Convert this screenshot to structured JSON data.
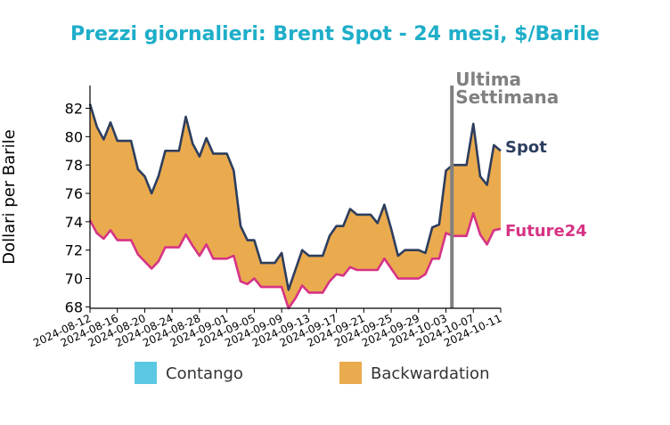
{
  "chart_data": {
    "type": "area",
    "title": "Prezzi giornalieri: Brent Spot - 24 mesi, $/Barile",
    "ylabel": "Dollari per Barile",
    "xlabel": "",
    "ylim": [
      67.9,
      83.6
    ],
    "yticks": [
      68,
      70,
      72,
      74,
      76,
      78,
      80,
      82
    ],
    "xticks": [
      "2024-08-12",
      "2024-08-16",
      "2024-08-20",
      "2024-08-24",
      "2024-08-28",
      "2024-09-01",
      "2024-09-05",
      "2024-09-09",
      "2024-09-13",
      "2024-09-17",
      "2024-09-21",
      "2024-09-25",
      "2024-09-29",
      "2024-10-03",
      "2024-10-07",
      "2024-10-11"
    ],
    "x": [
      "2024-08-12",
      "2024-08-13",
      "2024-08-14",
      "2024-08-15",
      "2024-08-16",
      "2024-08-17",
      "2024-08-18",
      "2024-08-19",
      "2024-08-20",
      "2024-08-21",
      "2024-08-22",
      "2024-08-23",
      "2024-08-24",
      "2024-08-25",
      "2024-08-26",
      "2024-08-27",
      "2024-08-28",
      "2024-08-29",
      "2024-08-30",
      "2024-08-31",
      "2024-09-01",
      "2024-09-02",
      "2024-09-03",
      "2024-09-04",
      "2024-09-05",
      "2024-09-06",
      "2024-09-07",
      "2024-09-08",
      "2024-09-09",
      "2024-09-10",
      "2024-09-11",
      "2024-09-12",
      "2024-09-13",
      "2024-09-14",
      "2024-09-15",
      "2024-09-16",
      "2024-09-17",
      "2024-09-18",
      "2024-09-19",
      "2024-09-20",
      "2024-09-21",
      "2024-09-22",
      "2024-09-23",
      "2024-09-24",
      "2024-09-25",
      "2024-09-26",
      "2024-09-27",
      "2024-09-28",
      "2024-09-29",
      "2024-09-30",
      "2024-10-01",
      "2024-10-02",
      "2024-10-03",
      "2024-10-04",
      "2024-10-05",
      "2024-10-06",
      "2024-10-07",
      "2024-10-08",
      "2024-10-09",
      "2024-10-10",
      "2024-10-11"
    ],
    "series": [
      {
        "name": "Spot",
        "color": "#2d3e5e",
        "values": [
          82.3,
          80.7,
          79.8,
          81.0,
          79.7,
          79.7,
          79.7,
          77.7,
          77.2,
          76.0,
          77.2,
          79.0,
          79.0,
          79.0,
          81.4,
          79.5,
          78.6,
          79.9,
          78.8,
          78.8,
          78.8,
          77.6,
          73.7,
          72.7,
          72.7,
          71.1,
          71.1,
          71.1,
          71.8,
          69.2,
          70.6,
          72.0,
          71.6,
          71.6,
          71.6,
          73.0,
          73.7,
          73.7,
          74.9,
          74.5,
          74.5,
          74.5,
          73.9,
          75.2,
          73.5,
          71.6,
          72.0,
          72.0,
          72.0,
          71.8,
          73.6,
          73.8,
          77.6,
          78.0,
          78.0,
          78.0,
          80.9,
          77.2,
          76.6,
          79.4,
          79.0
        ]
      },
      {
        "name": "Future24",
        "color": "#d63384",
        "values": [
          74.1,
          73.2,
          72.8,
          73.4,
          72.7,
          72.7,
          72.7,
          71.7,
          71.2,
          70.7,
          71.2,
          72.2,
          72.2,
          72.2,
          73.1,
          72.3,
          71.6,
          72.4,
          71.4,
          71.4,
          71.4,
          71.6,
          69.8,
          69.6,
          70.0,
          69.4,
          69.4,
          69.4,
          69.4,
          67.9,
          68.6,
          69.5,
          69.0,
          69.0,
          69.0,
          69.8,
          70.3,
          70.2,
          70.8,
          70.6,
          70.6,
          70.6,
          70.6,
          71.4,
          70.7,
          70.0,
          70.0,
          70.0,
          70.0,
          70.3,
          71.4,
          71.4,
          73.2,
          73.0,
          73.0,
          73.0,
          74.6,
          73.1,
          72.4,
          73.4,
          73.5
        ]
      }
    ],
    "annotation": {
      "line1": "Ultima",
      "line2": "Settimana",
      "date": "2024-10-04",
      "color": "#808080"
    },
    "fill_color": "#eaaa4e",
    "legend": [
      {
        "label": "Contango",
        "color": "#5bc8e3"
      },
      {
        "label": "Backwardation",
        "color": "#eaaa4e"
      }
    ],
    "legend_position": "bottom",
    "grid": false,
    "title_color": "#1eaec9"
  }
}
